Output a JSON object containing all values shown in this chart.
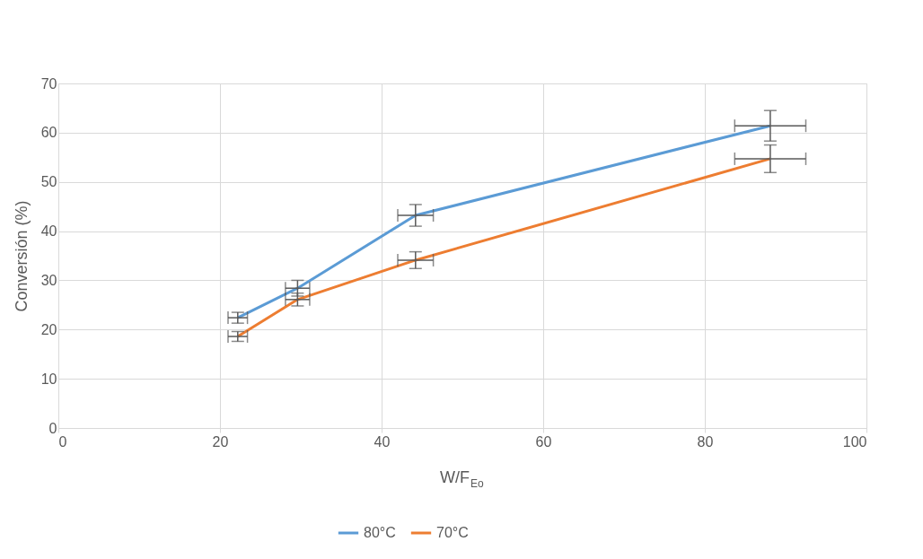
{
  "chart_data": {
    "type": "line",
    "xlabel": "W/F$_{Eo}$",
    "ylabel": "Conversión (%)",
    "xlim": [
      0,
      100
    ],
    "xticks": [
      0,
      20,
      40,
      60,
      80,
      100
    ],
    "ylim": [
      0,
      70
    ],
    "yticks": [
      0,
      10,
      20,
      30,
      40,
      50,
      60,
      70
    ],
    "grid": true,
    "legend": "bottom",
    "marker": "none",
    "line_style": "solid",
    "series": [
      {
        "name": "80°C",
        "color": "#5b9bd5",
        "x": [
          22.2,
          29.6,
          44.2,
          88.1
        ],
        "values": [
          22.4,
          28.4,
          43.2,
          61.4
        ],
        "errors": [
          1.1,
          1.6,
          2.2,
          3.1
        ],
        "xerrors": [
          1.2,
          1.5,
          2.2,
          4.4
        ]
      },
      {
        "name": "70°C",
        "color": "#ed7d31",
        "x": [
          22.2,
          29.6,
          44.2,
          88.1
        ],
        "values": [
          18.6,
          26.1,
          34.1,
          54.7
        ],
        "errors": [
          1.0,
          1.3,
          1.7,
          2.8
        ],
        "xerrors": [
          1.2,
          1.5,
          2.2,
          4.4
        ]
      }
    ]
  }
}
